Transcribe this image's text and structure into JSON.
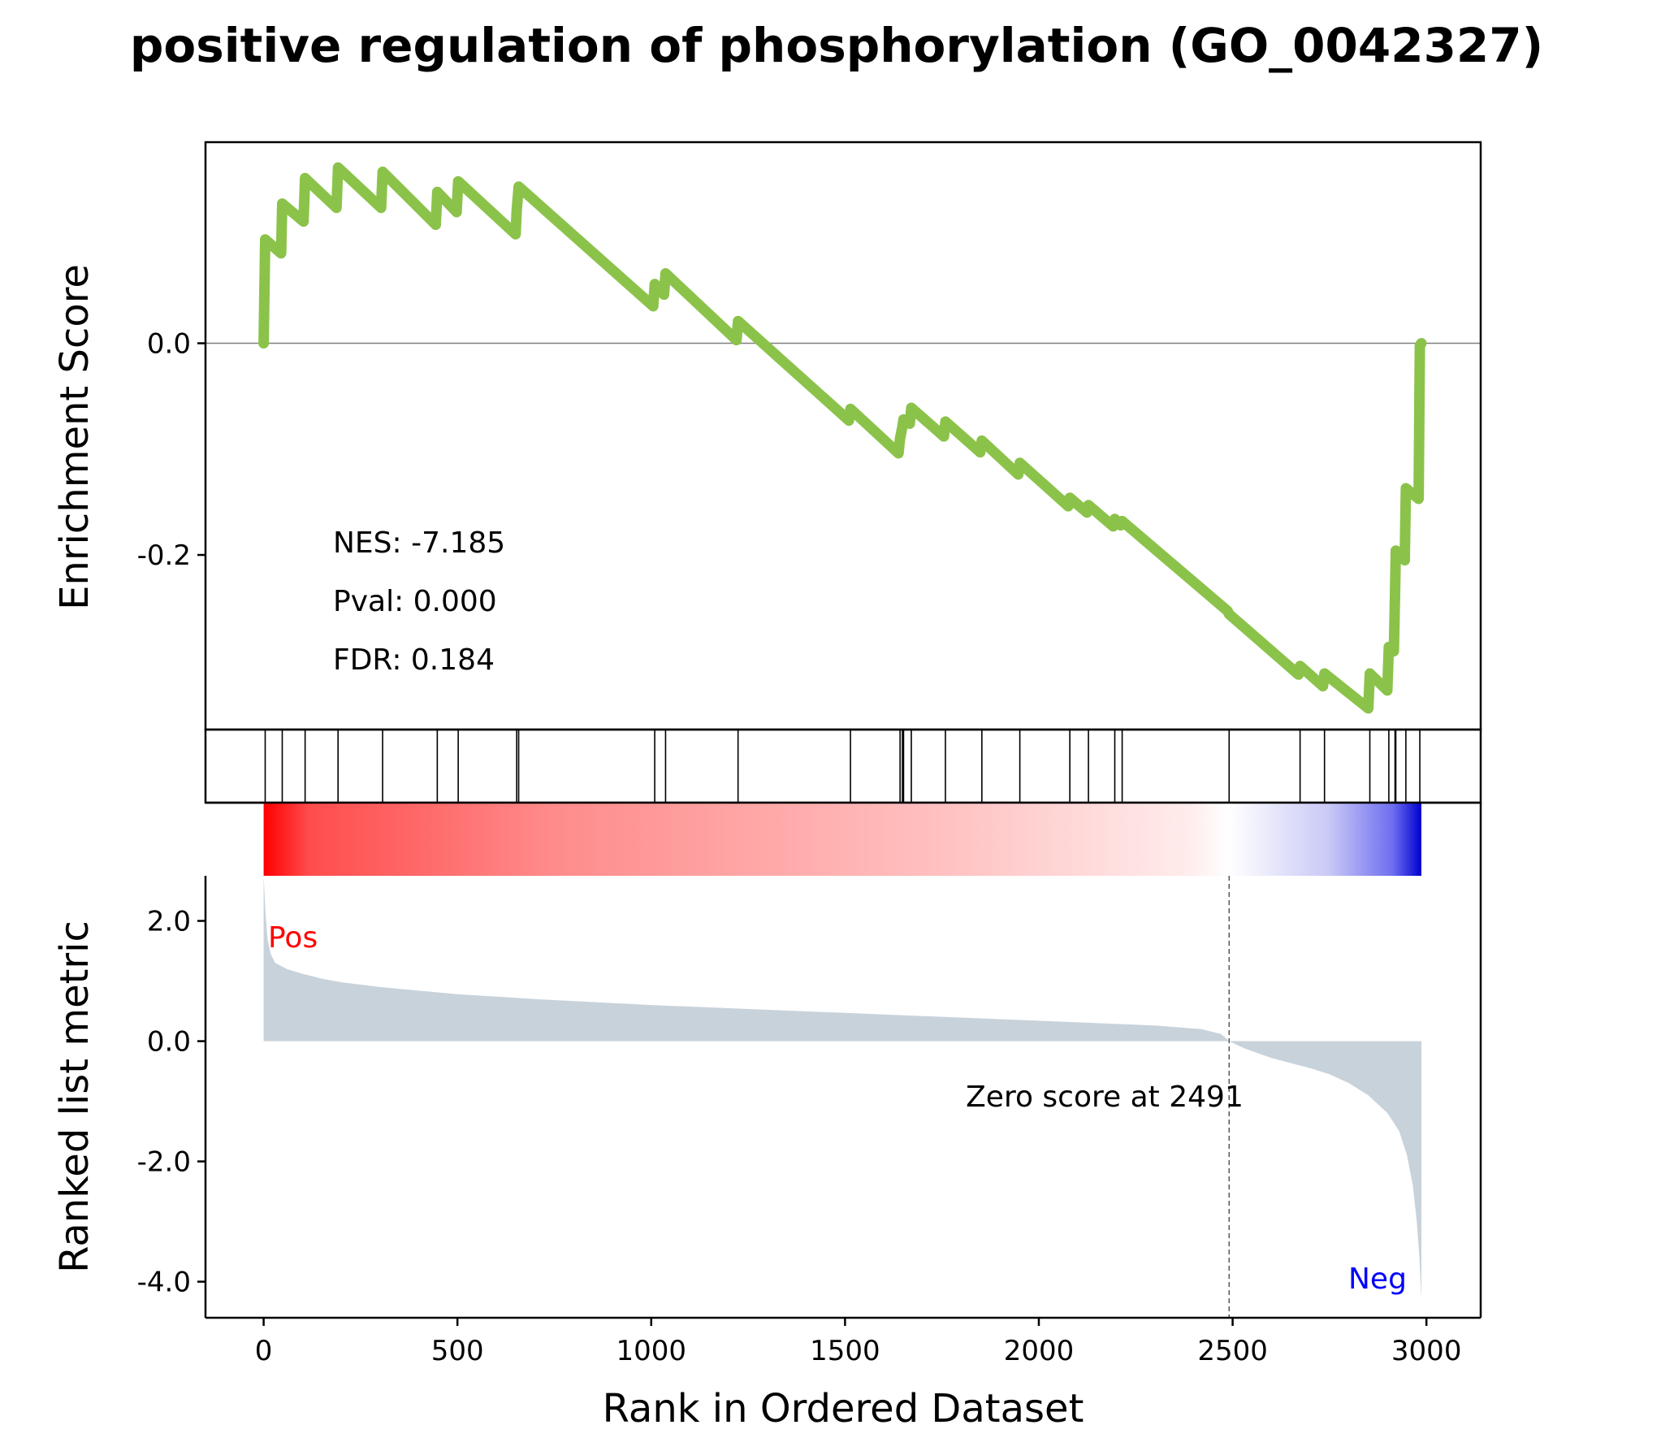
{
  "chart_data": {
    "type": "line",
    "title": "positive regulation of phosphorylation (GO_0042327)",
    "x_axis": {
      "label": "Rank in Ordered Dataset",
      "range": [
        -150,
        3140
      ],
      "ticks": [
        0,
        500,
        1000,
        1500,
        2000,
        2500,
        3000
      ],
      "tick_labels": [
        "0",
        "500",
        "1000",
        "1500",
        "2000",
        "2500",
        "3000"
      ]
    },
    "enrichment_panel": {
      "ylabel": "Enrichment Score",
      "y_range": [
        -0.365,
        0.19
      ],
      "y_ticks": [
        0.0,
        -0.2
      ],
      "y_tick_labels": [
        "0.0",
        "-0.2"
      ],
      "line_color": "#8bc34a",
      "zero_line": true,
      "stats": [
        "NES: -7.185",
        "Pval: 0.000",
        "FDR: 0.184"
      ],
      "points": [
        [
          0,
          0.0
        ],
        [
          4,
          0.098
        ],
        [
          45,
          0.085
        ],
        [
          48,
          0.132
        ],
        [
          103,
          0.115
        ],
        [
          107,
          0.156
        ],
        [
          188,
          0.128
        ],
        [
          192,
          0.166
        ],
        [
          303,
          0.128
        ],
        [
          307,
          0.162
        ],
        [
          444,
          0.112
        ],
        [
          448,
          0.143
        ],
        [
          498,
          0.124
        ],
        [
          502,
          0.153
        ],
        [
          650,
          0.103
        ],
        [
          653,
          0.126
        ],
        [
          658,
          0.148
        ],
        [
          1005,
          0.035
        ],
        [
          1009,
          0.056
        ],
        [
          1033,
          0.046
        ],
        [
          1037,
          0.066
        ],
        [
          1220,
          0.003
        ],
        [
          1224,
          0.021
        ],
        [
          1510,
          -0.073
        ],
        [
          1514,
          -0.062
        ],
        [
          1638,
          -0.104
        ],
        [
          1642,
          -0.09
        ],
        [
          1648,
          -0.079
        ],
        [
          1651,
          -0.072
        ],
        [
          1667,
          -0.076
        ],
        [
          1671,
          -0.061
        ],
        [
          1755,
          -0.088
        ],
        [
          1759,
          -0.074
        ],
        [
          1849,
          -0.103
        ],
        [
          1853,
          -0.092
        ],
        [
          1947,
          -0.124
        ],
        [
          1951,
          -0.113
        ],
        [
          2076,
          -0.154
        ],
        [
          2080,
          -0.146
        ],
        [
          2124,
          -0.16
        ],
        [
          2128,
          -0.153
        ],
        [
          2192,
          -0.173
        ],
        [
          2196,
          -0.166
        ],
        [
          2211,
          -0.172
        ],
        [
          2215,
          -0.168
        ],
        [
          2487,
          -0.253
        ],
        [
          2491,
          -0.256
        ],
        [
          2670,
          -0.313
        ],
        [
          2674,
          -0.305
        ],
        [
          2733,
          -0.324
        ],
        [
          2737,
          -0.312
        ],
        [
          2850,
          -0.345
        ],
        [
          2854,
          -0.312
        ],
        [
          2899,
          -0.328
        ],
        [
          2903,
          -0.287
        ],
        [
          2916,
          -0.291
        ],
        [
          2919,
          -0.238
        ],
        [
          2921,
          -0.196
        ],
        [
          2944,
          -0.205
        ],
        [
          2947,
          -0.137
        ],
        [
          2980,
          -0.147
        ],
        [
          2983,
          -0.002
        ],
        [
          2987,
          0.0
        ]
      ]
    },
    "hits_panel": {
      "positions": [
        4,
        48,
        107,
        192,
        307,
        448,
        502,
        653,
        658,
        1009,
        1037,
        1224,
        1514,
        1642,
        1648,
        1651,
        1671,
        1759,
        1853,
        1951,
        2080,
        2128,
        2196,
        2215,
        2491,
        2674,
        2737,
        2854,
        2903,
        2919,
        2921,
        2947,
        2983
      ]
    },
    "colorbar": {
      "x_range": [
        0,
        2987
      ],
      "stops": [
        {
          "pos": 0.0,
          "color": "#ff0000"
        },
        {
          "pos": 0.04,
          "color": "#ff4d4d"
        },
        {
          "pos": 0.25,
          "color": "#ff8b8b"
        },
        {
          "pos": 0.6,
          "color": "#ffc3c3"
        },
        {
          "pos": 0.8,
          "color": "#ffecec"
        },
        {
          "pos": 0.834,
          "color": "#ffffff"
        },
        {
          "pos": 0.92,
          "color": "#c9c9f6"
        },
        {
          "pos": 0.975,
          "color": "#6f6ff0"
        },
        {
          "pos": 1.0,
          "color": "#0000d0"
        }
      ]
    },
    "metric_panel": {
      "ylabel": "Ranked list metric",
      "y_range": [
        -4.6,
        2.75
      ],
      "y_ticks": [
        2.0,
        0.0,
        -2.0,
        -4.0
      ],
      "y_tick_labels": [
        "2.0",
        "0.0",
        "-2.0",
        "-4.0"
      ],
      "fill_color": "#c8d2da",
      "pos_label": "Pos",
      "pos_color": "#ff0000",
      "neg_label": "Neg",
      "neg_color": "#0000ff",
      "zero_cross_rank": 2491,
      "zero_label": "Zero score at 2491",
      "points": [
        [
          0,
          2.75
        ],
        [
          5,
          2.1
        ],
        [
          10,
          1.7
        ],
        [
          18,
          1.45
        ],
        [
          30,
          1.3
        ],
        [
          60,
          1.2
        ],
        [
          100,
          1.12
        ],
        [
          150,
          1.04
        ],
        [
          200,
          0.98
        ],
        [
          300,
          0.9
        ],
        [
          400,
          0.84
        ],
        [
          500,
          0.78
        ],
        [
          700,
          0.7
        ],
        [
          1000,
          0.6
        ],
        [
          1500,
          0.47
        ],
        [
          2000,
          0.34
        ],
        [
          2300,
          0.26
        ],
        [
          2420,
          0.2
        ],
        [
          2470,
          0.12
        ],
        [
          2491,
          0.0
        ],
        [
          2530,
          -0.12
        ],
        [
          2600,
          -0.28
        ],
        [
          2700,
          -0.45
        ],
        [
          2750,
          -0.55
        ],
        [
          2800,
          -0.7
        ],
        [
          2850,
          -0.9
        ],
        [
          2900,
          -1.2
        ],
        [
          2930,
          -1.5
        ],
        [
          2950,
          -1.9
        ],
        [
          2965,
          -2.4
        ],
        [
          2975,
          -3.0
        ],
        [
          2982,
          -3.6
        ],
        [
          2987,
          -4.3
        ]
      ]
    }
  }
}
